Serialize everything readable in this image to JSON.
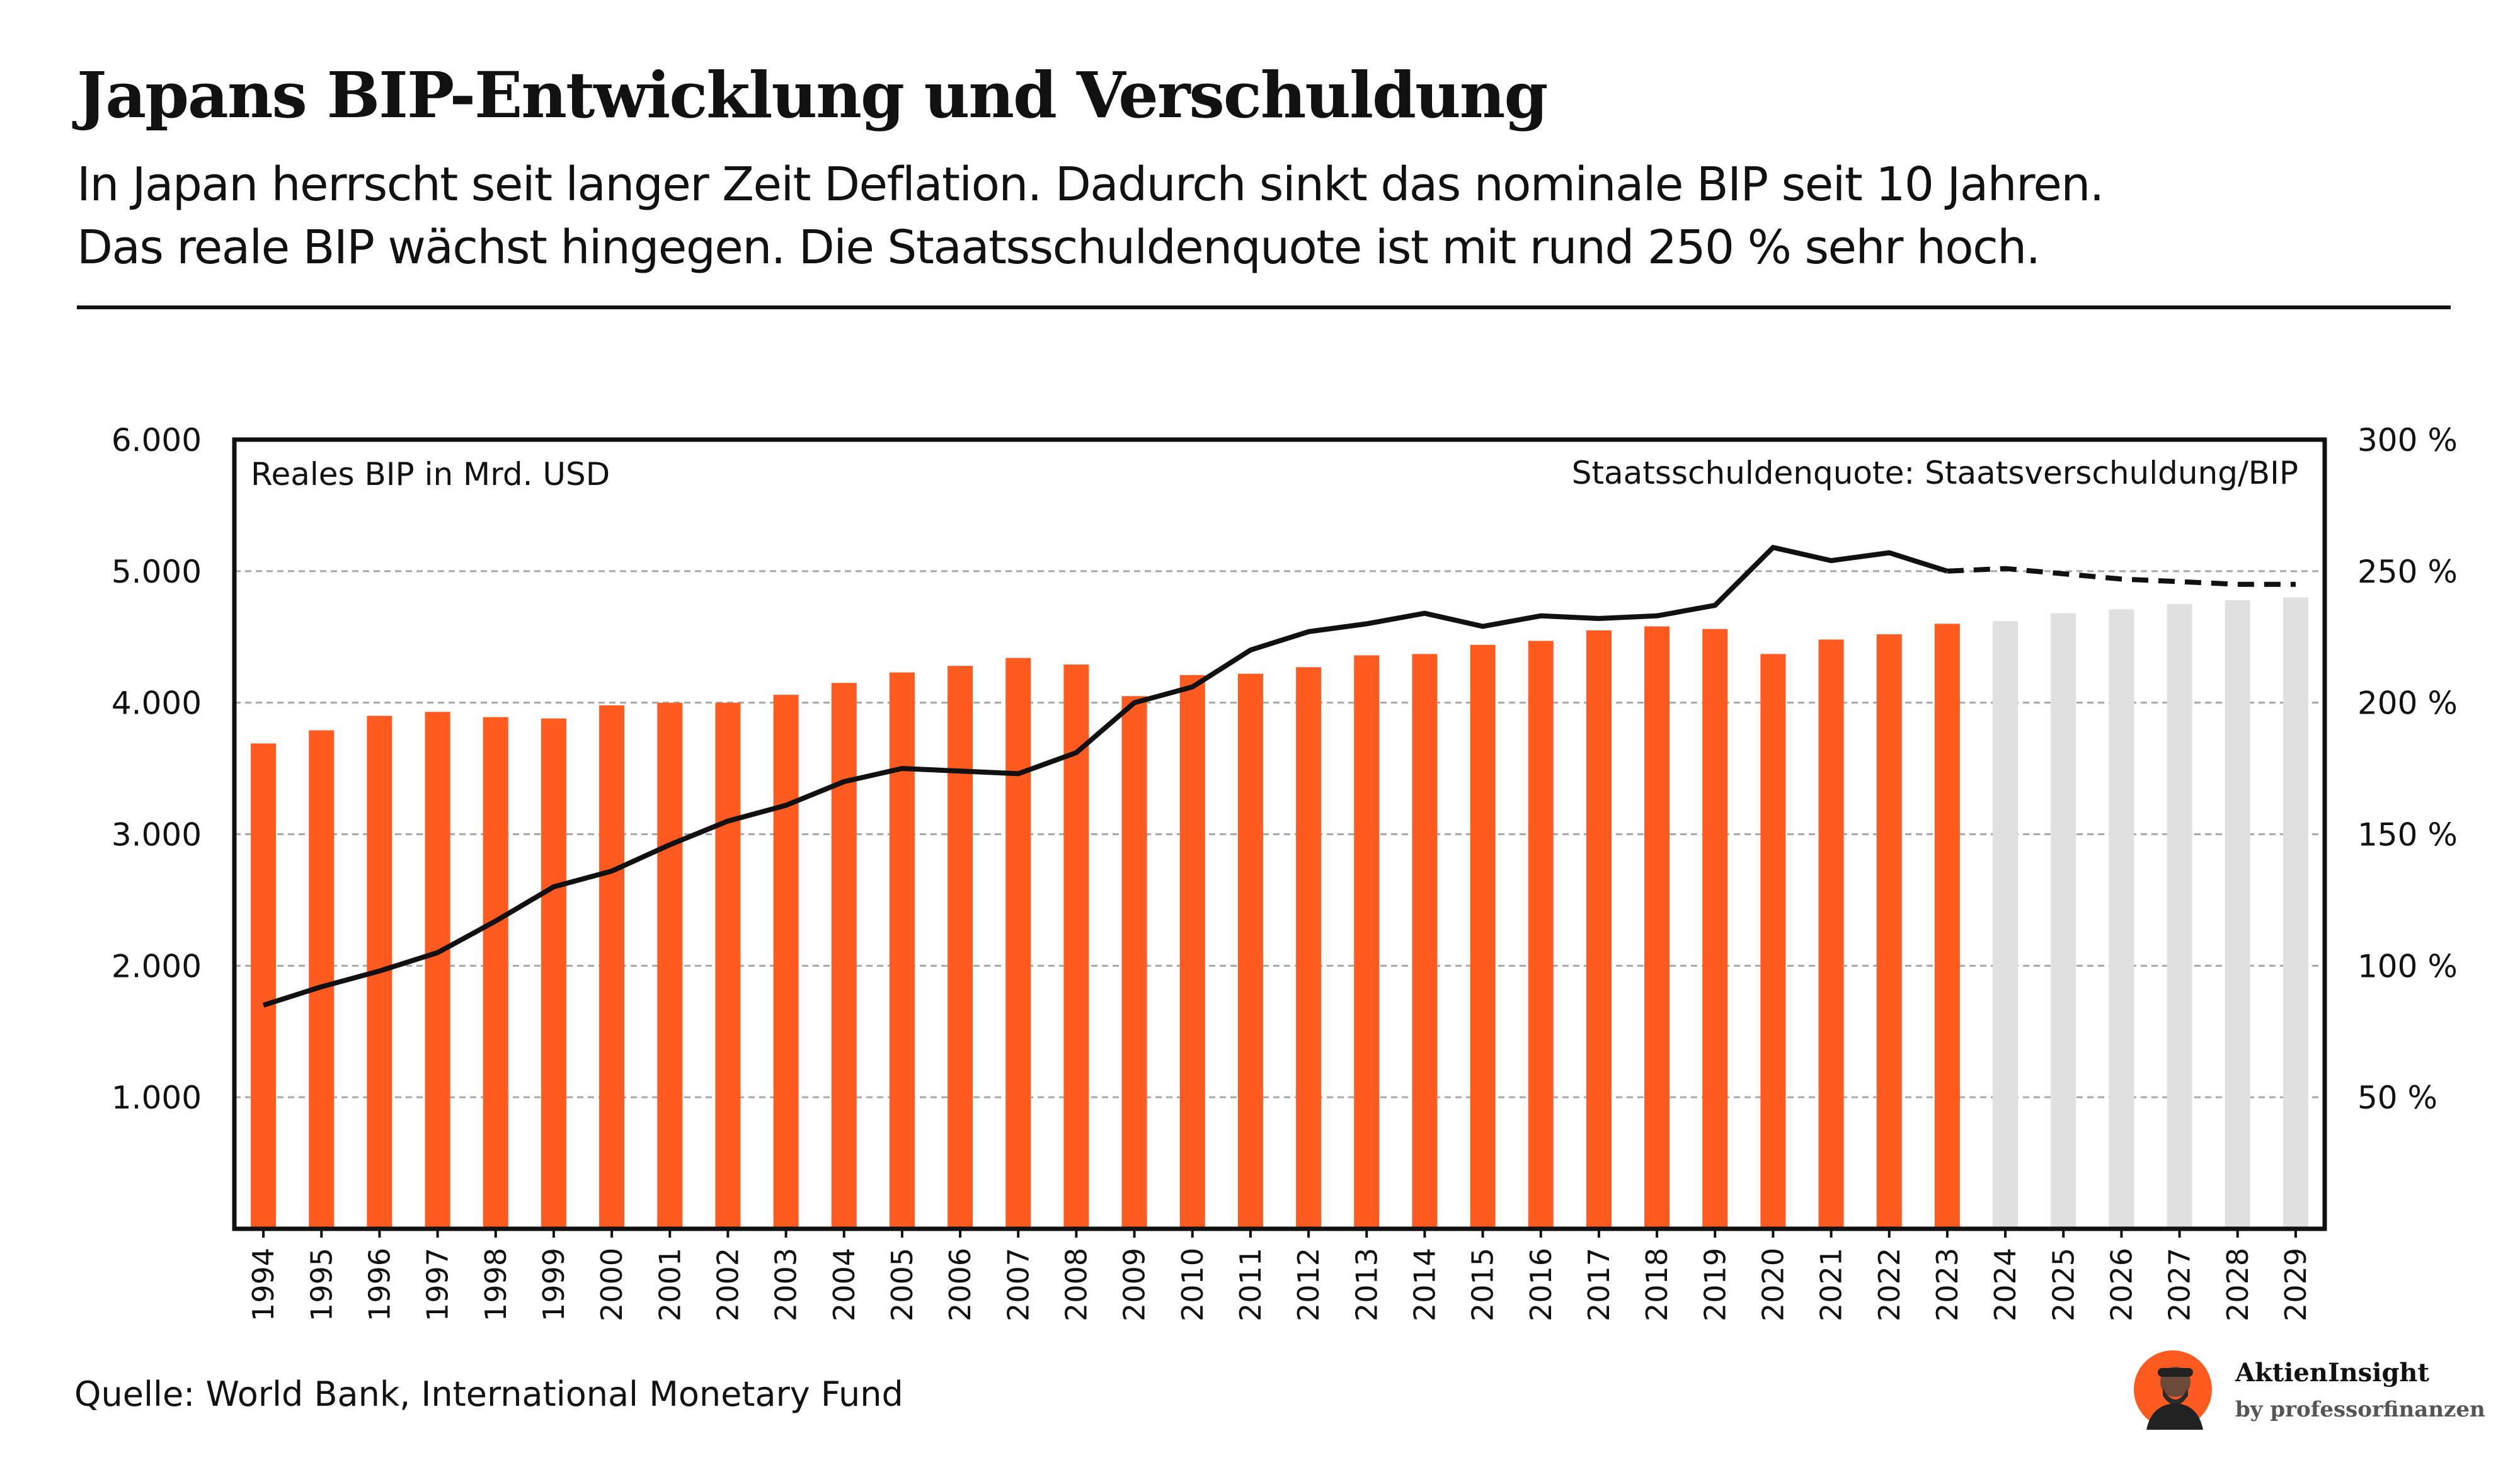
{
  "header": {
    "title": "Japans BIP-Entwicklung und Verschuldung",
    "subtitle_line1": "In Japan herrscht seit langer Zeit Deflation. Dadurch sinkt das nominale BIP seit 10 Jahren.",
    "subtitle_line2": "Das reale BIP wächst hingegen. Die Staatsschuldenquote ist mit rund 250 % sehr hoch."
  },
  "footer": {
    "source": "Quelle: World Bank, International Monetary Fund",
    "brand_name": "AktienInsight",
    "brand_sub": "by professorfinanzen"
  },
  "chart_data": {
    "type": "bar",
    "left_axis_label": "Reales BIP in Mrd. USD",
    "right_axis_label": "Staatsschuldenquote: Staatsverschuldung/BIP",
    "ylim_left": [
      0,
      6000
    ],
    "yticks_left": [
      1000,
      2000,
      3000,
      4000,
      5000,
      6000
    ],
    "ytick_labels_left": [
      "1.000",
      "2.000",
      "3.000",
      "4.000",
      "5.000",
      "6.000"
    ],
    "ylim_right": [
      0,
      300
    ],
    "yticks_right": [
      50,
      100,
      150,
      200,
      250,
      300
    ],
    "ytick_labels_right": [
      "50 %",
      "100 %",
      "150 %",
      "200 %",
      "250 %",
      "300 %"
    ],
    "grid": true,
    "categories": [
      "1994",
      "1995",
      "1996",
      "1997",
      "1998",
      "1999",
      "2000",
      "2001",
      "2002",
      "2003",
      "2004",
      "2005",
      "2006",
      "2007",
      "2008",
      "2009",
      "2010",
      "2011",
      "2012",
      "2013",
      "2014",
      "2015",
      "2016",
      "2017",
      "2018",
      "2019",
      "2020",
      "2021",
      "2022",
      "2023",
      "2024",
      "2025",
      "2026",
      "2027",
      "2028",
      "2029"
    ],
    "first_forecast_index": 30,
    "series": [
      {
        "name": "Reales BIP in Mrd. USD",
        "kind": "bar",
        "axis": "left",
        "color": "#ff5a1f",
        "forecast_color": "#e0e0e0",
        "values": [
          3690,
          3790,
          3900,
          3930,
          3890,
          3880,
          3980,
          4000,
          4000,
          4060,
          4150,
          4230,
          4280,
          4340,
          4290,
          4050,
          4210,
          4220,
          4270,
          4360,
          4370,
          4440,
          4470,
          4550,
          4580,
          4560,
          4370,
          4480,
          4520,
          4600,
          4620,
          4680,
          4710,
          4750,
          4780,
          4800
        ]
      },
      {
        "name": "Staatsschuldenquote: Staatsverschuldung/BIP",
        "kind": "line",
        "axis": "right",
        "color": "#111111",
        "style_forecast": "dashed",
        "values": [
          85,
          92,
          98,
          105,
          117,
          130,
          136,
          146,
          155,
          161,
          170,
          175,
          174,
          173,
          181,
          200,
          206,
          220,
          227,
          230,
          234,
          229,
          233,
          232,
          233,
          237,
          259,
          254,
          257,
          250,
          251,
          249,
          247,
          246,
          245,
          245
        ]
      }
    ]
  }
}
